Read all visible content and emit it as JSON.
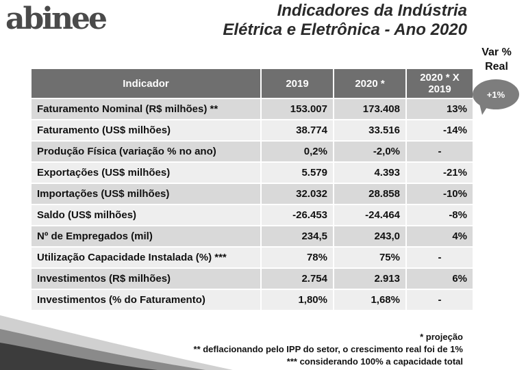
{
  "logo": {
    "text": "abinee"
  },
  "title": {
    "line1": "Indicadores da Indústria",
    "line2": "Elétrica e Eletrônica - Ano 2020"
  },
  "var_real": {
    "label_line1": "Var %",
    "label_line2": "Real",
    "bubble": "+1%"
  },
  "table": {
    "headers": [
      "Indicador",
      "2019",
      "2020 *",
      "2020 * X 2019"
    ],
    "rows": [
      [
        "Faturamento Nominal (R$ milhões) **",
        "153.007",
        "173.408",
        "13%"
      ],
      [
        "Faturamento (US$ milhões)",
        "38.774",
        "33.516",
        "-14%"
      ],
      [
        "Produção Física (variação % no ano)",
        "0,2%",
        "-2,0%",
        "-"
      ],
      [
        "Exportações (US$ milhões)",
        "5.579",
        "4.393",
        "-21%"
      ],
      [
        "Importações (US$ milhões)",
        "32.032",
        "28.858",
        "-10%"
      ],
      [
        "Saldo (US$ milhões)",
        "-26.453",
        "-24.464",
        "-8%"
      ],
      [
        "Nº de Empregados (mil)",
        "234,5",
        "243,0",
        "4%"
      ],
      [
        "Utilização Capacidade Instalada (%) ***",
        "78%",
        "75%",
        "-"
      ],
      [
        "Investimentos (R$ milhões)",
        "2.754",
        "2.913",
        "6%"
      ],
      [
        "Investimentos (% do Faturamento)",
        "1,80%",
        "1,68%",
        "-"
      ]
    ]
  },
  "notes": [
    "* projeção",
    "** deflacionando pelo IPP do setor, o crescimento real foi de 1%",
    "*** considerando 100% a capacidade total"
  ]
}
